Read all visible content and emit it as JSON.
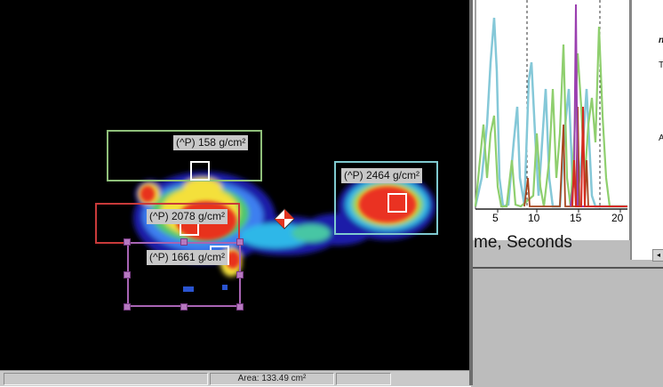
{
  "map": {
    "regions": [
      {
        "label": "(^P) 158 g/cm²"
      },
      {
        "label": "(^P) 2464 g/cm²"
      },
      {
        "label": "(^P) 2078 g/cm²"
      },
      {
        "label": "(^P) 1661 g/cm²"
      }
    ]
  },
  "statusbar": {
    "area": "Area: 133.49 cm²"
  },
  "chart": {
    "x_ticks": [
      "5",
      "10",
      "15",
      "20"
    ],
    "x_title": "me, Seconds"
  },
  "side_pane": {
    "glyph_top": "n",
    "glyph_t": "T",
    "glyph_a": "A"
  },
  "colors": {
    "roi_green": "#8fbf7a",
    "roi_cyan": "#7fc9cf",
    "roi_red": "#c83a3a",
    "roi_purple": "#a864b4"
  }
}
